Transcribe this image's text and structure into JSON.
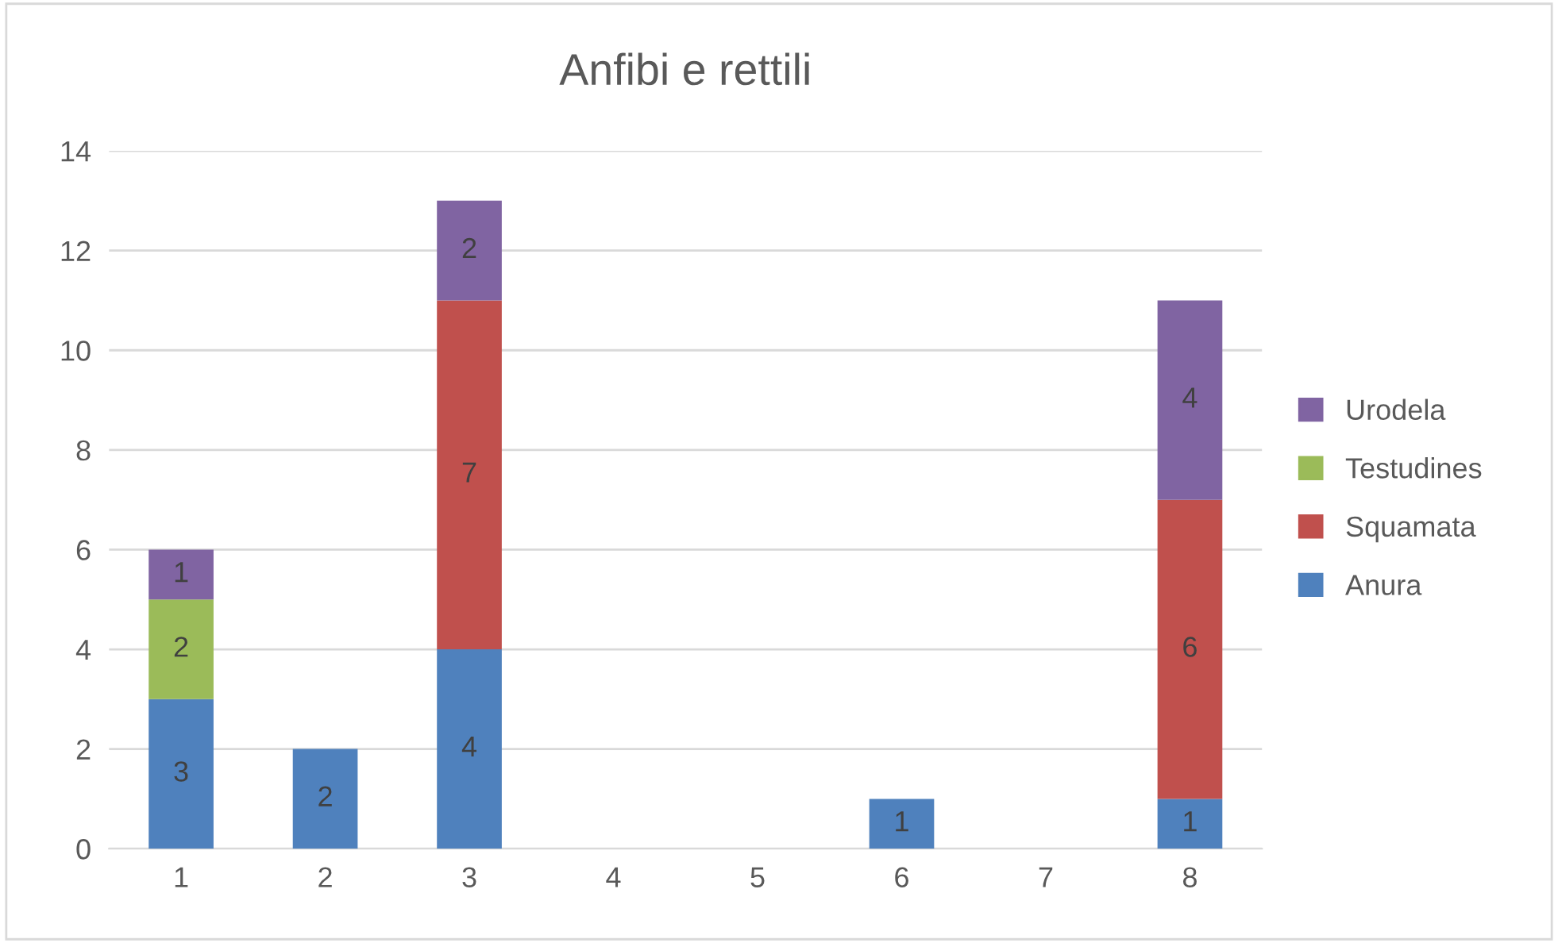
{
  "chart_data": {
    "type": "bar",
    "title": "Anfibi e rettili",
    "stacked": true,
    "categories": [
      "1",
      "2",
      "3",
      "4",
      "5",
      "6",
      "7",
      "8"
    ],
    "series": [
      {
        "name": "Anura",
        "color": "#4f81bd",
        "values": [
          3,
          2,
          4,
          null,
          null,
          1,
          null,
          1
        ]
      },
      {
        "name": "Squamata",
        "color": "#c0504d",
        "values": [
          null,
          null,
          7,
          null,
          null,
          null,
          null,
          6
        ]
      },
      {
        "name": "Testudines",
        "color": "#9bbb59",
        "values": [
          2,
          null,
          null,
          null,
          null,
          null,
          null,
          null
        ]
      },
      {
        "name": "Urodela",
        "color": "#8064a2",
        "values": [
          1,
          null,
          2,
          null,
          null,
          null,
          null,
          4
        ]
      }
    ],
    "ylim": [
      0,
      14
    ],
    "yticks": [
      0,
      2,
      4,
      6,
      8,
      10,
      12,
      14
    ],
    "grid": "y",
    "legend": "right",
    "data_labels": true
  }
}
